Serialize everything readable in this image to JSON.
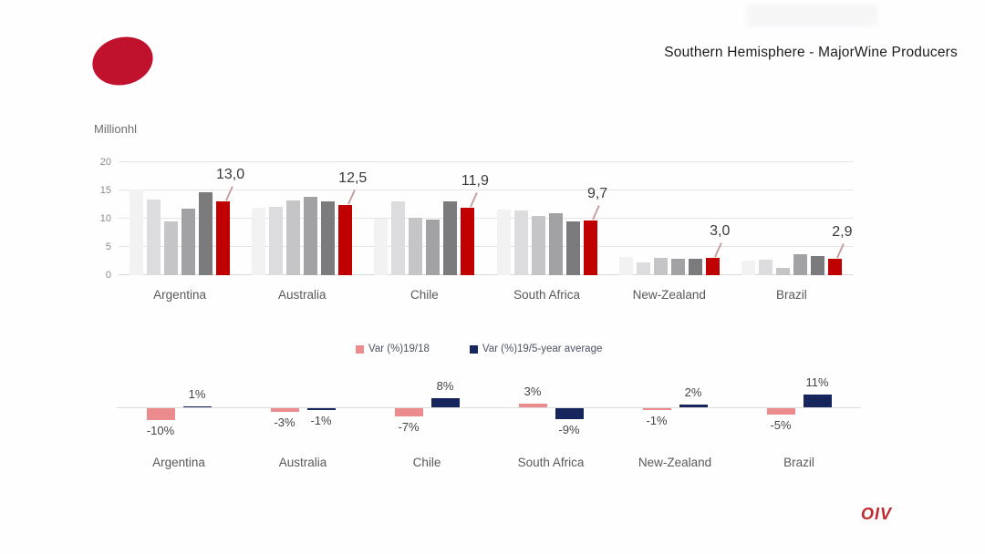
{
  "slide": {
    "title": "Southern Hemisphere - MajorWine Producers",
    "footer_logo": "OIV"
  },
  "colors": {
    "accent_red": "#c00000",
    "logo_red": "#c0122d",
    "footer_logo_red": "#c1272d",
    "pink": "#ec8b8e",
    "navy": "#16265c"
  },
  "chart_data": [
    {
      "type": "bar",
      "unit_label": "Millionhl",
      "ylim": [
        0,
        20
      ],
      "yticks": [
        20,
        15,
        10,
        5,
        0
      ],
      "grid": true,
      "categories": [
        "Argentina",
        "Australia",
        "Chile",
        "South Africa",
        "New-Zealand",
        "Brazil"
      ],
      "series": [
        {
          "color": "#f2f2f3",
          "values": [
            15.2,
            11.9,
            10.0,
            11.6,
            3.2,
            2.6
          ]
        },
        {
          "color": "#dcdcde",
          "values": [
            13.4,
            12.1,
            13.1,
            11.5,
            2.3,
            2.7
          ]
        },
        {
          "color": "#c5c5c7",
          "values": [
            9.5,
            13.2,
            10.2,
            10.5,
            3.0,
            1.3
          ]
        },
        {
          "color": "#a2a2a4",
          "values": [
            11.8,
            13.9,
            9.8,
            11.0,
            2.9,
            3.7
          ]
        },
        {
          "color": "#7b7b7d",
          "values": [
            14.6,
            13.1,
            13.1,
            9.5,
            2.9,
            3.4
          ]
        },
        {
          "color": "#c00000",
          "values": [
            13.0,
            12.5,
            11.9,
            9.7,
            3.0,
            2.9
          ]
        }
      ],
      "red_value_labels": [
        "13,0",
        "12,5",
        "11,9",
        "9,7",
        "3,0",
        "2,9"
      ]
    },
    {
      "type": "bar",
      "categories": [
        "Argentina",
        "Australia",
        "Chile",
        "South Africa",
        "New-Zealand",
        "Brazil"
      ],
      "legend_position": "top-center",
      "series": [
        {
          "name": "Var (%)19/18",
          "color": "#ec8b8e",
          "values": [
            -10,
            -3,
            -7,
            3,
            -1,
            -5
          ],
          "value_labels": [
            "-10%",
            "-3%",
            "-7%",
            "3%",
            "-1%",
            "-5%"
          ]
        },
        {
          "name": "Var (%)19/5-year average",
          "color": "#16265c",
          "values": [
            1,
            -1,
            8,
            -9,
            2,
            11
          ],
          "value_labels": [
            "1%",
            "-1%",
            "8%",
            "-9%",
            "2%",
            "11%"
          ]
        }
      ]
    }
  ]
}
